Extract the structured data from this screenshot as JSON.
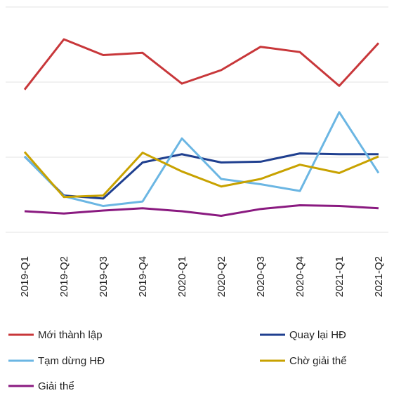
{
  "chart_data": {
    "type": "line",
    "categories": [
      "2019-Q1",
      "2019-Q2",
      "2019-Q3",
      "2019-Q4",
      "2020-Q1",
      "2020-Q2",
      "2020-Q3",
      "2020-Q4",
      "2021-Q1",
      "2021-Q2"
    ],
    "ylim": [
      0,
      30
    ],
    "yticks": [
      0,
      10,
      20,
      30
    ],
    "grid": true,
    "series": [
      {
        "name": "Mới thành lập",
        "color": "#c8373a",
        "values": [
          19.0,
          25.7,
          23.6,
          23.9,
          19.8,
          21.6,
          24.7,
          24.0,
          19.5,
          25.2
        ]
      },
      {
        "name": "Quay lại HĐ",
        "color": "#1f3f8f",
        "values": [
          10.1,
          4.9,
          4.5,
          9.3,
          10.4,
          9.3,
          9.4,
          10.5,
          10.4,
          10.4
        ]
      },
      {
        "name": "Tạm dừng HĐ",
        "color": "#6bb6e3",
        "values": [
          10.1,
          4.8,
          3.5,
          4.1,
          12.5,
          7.1,
          6.4,
          5.5,
          16.0,
          7.9
        ]
      },
      {
        "name": "Chờ giải thể",
        "color": "#c8a200",
        "values": [
          10.7,
          4.7,
          4.9,
          10.6,
          8.1,
          6.1,
          7.1,
          9.0,
          7.9,
          10.1
        ]
      },
      {
        "name": "Giải thể",
        "color": "#8a1a80",
        "values": [
          2.8,
          2.5,
          2.9,
          3.2,
          2.8,
          2.2,
          3.1,
          3.6,
          3.5,
          3.2
        ]
      }
    ]
  }
}
